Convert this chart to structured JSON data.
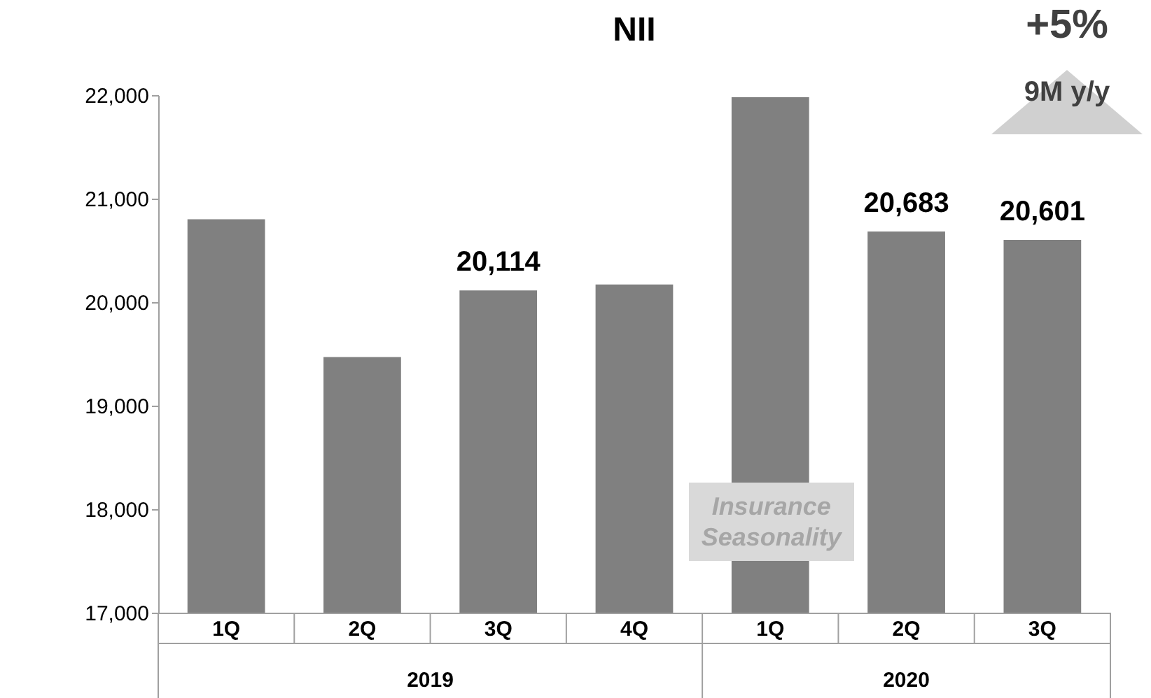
{
  "chart_data": {
    "type": "bar",
    "title": "NII",
    "categories": [
      "1Q",
      "2Q",
      "3Q",
      "4Q",
      "1Q",
      "2Q",
      "3Q"
    ],
    "values": [
      20800,
      19470,
      20114,
      20170,
      21980,
      20683,
      20601
    ],
    "value_labels": [
      null,
      null,
      "20,114",
      null,
      null,
      "20,683",
      "20,601"
    ],
    "color": "#808080",
    "ylim": [
      17000,
      22000
    ],
    "yticks": [
      {
        "value": 17000,
        "label": "17,000"
      },
      {
        "value": 18000,
        "label": "18,000"
      },
      {
        "value": 19000,
        "label": "19,000"
      },
      {
        "value": 20000,
        "label": "20,000"
      },
      {
        "value": 21000,
        "label": "21,000"
      },
      {
        "value": 22000,
        "label": "22,000"
      }
    ],
    "grid": false,
    "annotations": [
      "2019",
      "2020",
      "Insurance Seasonality",
      "+5%",
      "9M y/y"
    ]
  }
}
